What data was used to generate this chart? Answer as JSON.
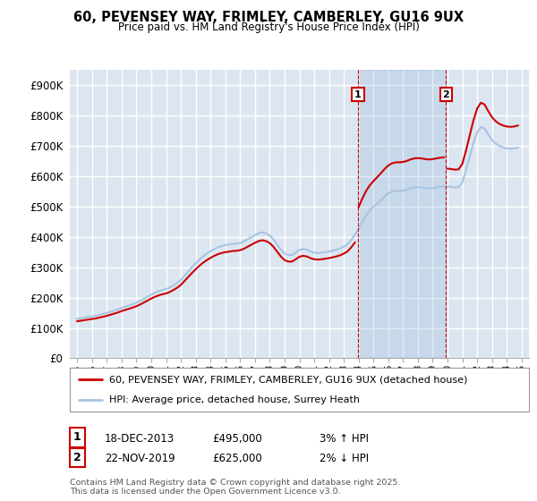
{
  "title": "60, PEVENSEY WAY, FRIMLEY, CAMBERLEY, GU16 9UX",
  "subtitle": "Price paid vs. HM Land Registry's House Price Index (HPI)",
  "background_color": "#ffffff",
  "plot_bg_color": "#dce6f1",
  "grid_color": "#ffffff",
  "line1_color": "#cc0000",
  "line2_color": "#a8c4e0",
  "line1_label": "60, PEVENSEY WAY, FRIMLEY, CAMBERLEY, GU16 9UX (detached house)",
  "line2_label": "HPI: Average price, detached house, Surrey Heath",
  "footer": "Contains HM Land Registry data © Crown copyright and database right 2025.\nThis data is licensed under the Open Government Licence v3.0.",
  "ylim": [
    0,
    950000
  ],
  "xlim_start": 1994.5,
  "xlim_end": 2025.5,
  "yticks": [
    0,
    100000,
    200000,
    300000,
    400000,
    500000,
    600000,
    700000,
    800000,
    900000
  ],
  "ytick_labels": [
    "£0",
    "£100K",
    "£200K",
    "£300K",
    "£400K",
    "£500K",
    "£600K",
    "£700K",
    "£800K",
    "£900K"
  ],
  "xticks": [
    1995,
    1996,
    1997,
    1998,
    1999,
    2000,
    2001,
    2002,
    2003,
    2004,
    2005,
    2006,
    2007,
    2008,
    2009,
    2010,
    2011,
    2012,
    2013,
    2014,
    2015,
    2016,
    2017,
    2018,
    2019,
    2020,
    2021,
    2022,
    2023,
    2024,
    2025
  ],
  "hpi_x": [
    1995,
    1995.25,
    1995.5,
    1995.75,
    1996,
    1996.25,
    1996.5,
    1996.75,
    1997,
    1997.25,
    1997.5,
    1997.75,
    1998,
    1998.25,
    1998.5,
    1998.75,
    1999,
    1999.25,
    1999.5,
    1999.75,
    2000,
    2000.25,
    2000.5,
    2000.75,
    2001,
    2001.25,
    2001.5,
    2001.75,
    2002,
    2002.25,
    2002.5,
    2002.75,
    2003,
    2003.25,
    2003.5,
    2003.75,
    2004,
    2004.25,
    2004.5,
    2004.75,
    2005,
    2005.25,
    2005.5,
    2005.75,
    2006,
    2006.25,
    2006.5,
    2006.75,
    2007,
    2007.25,
    2007.5,
    2007.75,
    2008,
    2008.25,
    2008.5,
    2008.75,
    2009,
    2009.25,
    2009.5,
    2009.75,
    2010,
    2010.25,
    2010.5,
    2010.75,
    2011,
    2011.25,
    2011.5,
    2011.75,
    2012,
    2012.25,
    2012.5,
    2012.75,
    2013,
    2013.25,
    2013.5,
    2013.75,
    2014,
    2014.25,
    2014.5,
    2014.75,
    2015,
    2015.25,
    2015.5,
    2015.75,
    2016,
    2016.25,
    2016.5,
    2016.75,
    2017,
    2017.25,
    2017.5,
    2017.75,
    2018,
    2018.25,
    2018.5,
    2018.75,
    2019,
    2019.25,
    2019.5,
    2019.75,
    2020,
    2020.25,
    2020.5,
    2020.75,
    2021,
    2021.25,
    2021.5,
    2021.75,
    2022,
    2022.25,
    2022.5,
    2022.75,
    2023,
    2023.25,
    2023.5,
    2023.75,
    2024,
    2024.25,
    2024.5,
    2024.75
  ],
  "hpi_y": [
    130000,
    132000,
    134000,
    136000,
    138000,
    140000,
    143000,
    146000,
    149000,
    153000,
    157000,
    161000,
    166000,
    170000,
    174000,
    178000,
    183000,
    189000,
    196000,
    203000,
    210000,
    216000,
    221000,
    225000,
    228000,
    233000,
    240000,
    248000,
    258000,
    272000,
    286000,
    300000,
    313000,
    325000,
    336000,
    345000,
    353000,
    360000,
    366000,
    370000,
    373000,
    375000,
    377000,
    378000,
    380000,
    385000,
    392000,
    399000,
    406000,
    412000,
    415000,
    412000,
    405000,
    392000,
    375000,
    358000,
    345000,
    340000,
    340000,
    348000,
    357000,
    360000,
    358000,
    352000,
    348000,
    347000,
    348000,
    350000,
    352000,
    355000,
    358000,
    362000,
    368000,
    376000,
    390000,
    407000,
    426000,
    450000,
    471000,
    487000,
    499000,
    510000,
    521000,
    533000,
    543000,
    549000,
    552000,
    552000,
    553000,
    556000,
    560000,
    563000,
    564000,
    563000,
    561000,
    560000,
    561000,
    563000,
    565000,
    566000,
    566000,
    565000,
    563000,
    564000,
    580000,
    620000,
    665000,
    710000,
    745000,
    763000,
    758000,
    738000,
    720000,
    708000,
    700000,
    695000,
    692000,
    691000,
    692000,
    695000
  ],
  "price_x0": 1995.75,
  "price_y0": 127500,
  "vline1_x": 2013.96,
  "vline1_y": 495000,
  "vline2_x": 2019.9,
  "vline2_y": 625000,
  "ann1_date": "18-DEC-2013",
  "ann1_price": "£495,000",
  "ann1_hpi": "3% ↑ HPI",
  "ann2_date": "22-NOV-2019",
  "ann2_price": "£625,000",
  "ann2_hpi": "2% ↓ HPI",
  "marker_y": 870000
}
